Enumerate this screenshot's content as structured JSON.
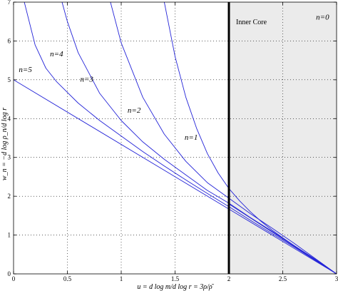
{
  "chart_data": {
    "type": "line",
    "title": "",
    "xlabel": "u = d log m/d log r = 3ρ/ρ̄",
    "ylabel": "w_n = −d log ρ_n/d log r",
    "xlim": [
      0,
      3
    ],
    "ylim": [
      0,
      7
    ],
    "xticks": [
      "0",
      "0.5",
      "1",
      "1.5",
      "2",
      "2.5",
      "3"
    ],
    "yticks": [
      "0",
      "1",
      "2",
      "3",
      "4",
      "5",
      "6",
      "7"
    ],
    "grid": "dotted",
    "core_boundary_x": 2,
    "regions": [
      {
        "label": "Inner Core",
        "x_from": 2,
        "x_to": 3,
        "shading": "#ebebeb"
      }
    ],
    "series": [
      {
        "name": "n=0",
        "x": [
          2,
          3
        ],
        "y": [
          1.8,
          0
        ]
      },
      {
        "name": "n=1",
        "x": [
          1.4,
          1.5,
          1.6,
          1.7,
          1.8,
          1.9,
          2.0,
          2.1,
          2.2,
          2.3,
          2.4,
          2.5,
          2.6,
          2.7,
          2.8,
          2.9,
          3.0
        ],
        "y": [
          7.0,
          5.6,
          4.55,
          3.75,
          3.1,
          2.6,
          2.2,
          1.88,
          1.6,
          1.35,
          1.13,
          0.93,
          0.74,
          0.56,
          0.38,
          0.19,
          0.0
        ]
      },
      {
        "name": "n=2",
        "x": [
          0.9,
          1.0,
          1.2,
          1.4,
          1.6,
          1.8,
          2.0,
          2.2,
          2.4,
          2.6,
          2.8,
          3.0
        ],
        "y": [
          7.0,
          5.95,
          4.55,
          3.6,
          2.9,
          2.35,
          1.95,
          1.55,
          1.18,
          0.8,
          0.4,
          0.0
        ]
      },
      {
        "name": "n=3",
        "x": [
          0.45,
          0.5,
          0.6,
          0.8,
          1.0,
          1.2,
          1.4,
          1.6,
          1.8,
          2.0,
          2.2,
          2.4,
          2.6,
          2.8,
          3.0
        ],
        "y": [
          7.0,
          6.5,
          5.7,
          4.65,
          3.95,
          3.4,
          2.95,
          2.55,
          2.15,
          1.82,
          1.45,
          1.1,
          0.74,
          0.37,
          0.0
        ]
      },
      {
        "name": "n=4",
        "x": [
          0.1,
          0.2,
          0.3,
          0.4,
          0.6,
          0.8,
          1.0,
          1.2,
          1.4,
          1.6,
          1.8,
          2.0,
          2.2,
          2.4,
          2.6,
          2.8,
          3.0
        ],
        "y": [
          7.0,
          5.9,
          5.3,
          4.95,
          4.4,
          3.95,
          3.55,
          3.15,
          2.78,
          2.42,
          2.07,
          1.73,
          1.38,
          1.04,
          0.7,
          0.35,
          0.0
        ]
      },
      {
        "name": "n=5",
        "x": [
          0,
          2,
          3
        ],
        "y": [
          5.0,
          1.67,
          0.0
        ]
      }
    ],
    "curve_labels": [
      {
        "text": "n=5",
        "x": 0.11,
        "y": 5.2
      },
      {
        "text": "n=4",
        "x": 0.4,
        "y": 5.6
      },
      {
        "text": "n=3",
        "x": 0.68,
        "y": 4.95
      },
      {
        "text": "n=2",
        "x": 1.12,
        "y": 4.15
      },
      {
        "text": "n=1",
        "x": 1.65,
        "y": 3.45
      },
      {
        "text": "n=0",
        "x": 2.87,
        "y": 6.55
      }
    ]
  }
}
